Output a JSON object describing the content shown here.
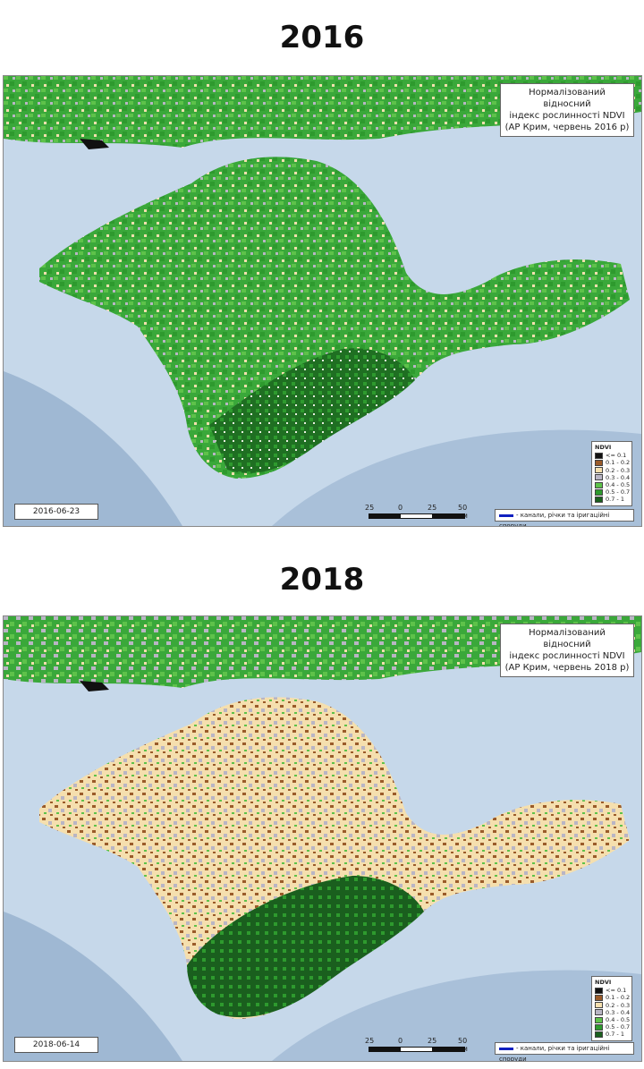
{
  "maps": [
    {
      "year": "2016",
      "title_lines": [
        "Нормалізований відносний",
        "індекс рослинності NDVI",
        "(АР Крим,  червень 2016 р)"
      ],
      "date": "2016-06-23",
      "dominant": "green"
    },
    {
      "year": "2018",
      "title_lines": [
        "Нормалізований відносний",
        "індекс рослинності NDVI",
        "(АР Крим,  червень 2018 р)"
      ],
      "date": "2018-06-14",
      "dominant": "beige"
    }
  ],
  "legend": {
    "title": "NDVI",
    "classes": [
      {
        "label": "<= 0.1",
        "color": "#111111"
      },
      {
        "label": "0.1 - 0.2",
        "color": "#9a5b2a"
      },
      {
        "label": "0.2 - 0.3",
        "color": "#f5dfae"
      },
      {
        "label": "0.3 - 0.4",
        "color": "#b9b5c4"
      },
      {
        "label": "0.4 - 0.5",
        "color": "#5ec24a"
      },
      {
        "label": "0.5 - 0.7",
        "color": "#2e9a2e"
      },
      {
        "label": "0.7 - 1",
        "color": "#1a5f1e"
      }
    ]
  },
  "scale_bar": {
    "labels": [
      "25",
      "0",
      "25",
      "50 км"
    ]
  },
  "canal_legend": "- канали, річки та іригаційні споруди",
  "colors": {
    "sea": "#c6d8ea",
    "deep_sea": "#9fb8d3"
  }
}
